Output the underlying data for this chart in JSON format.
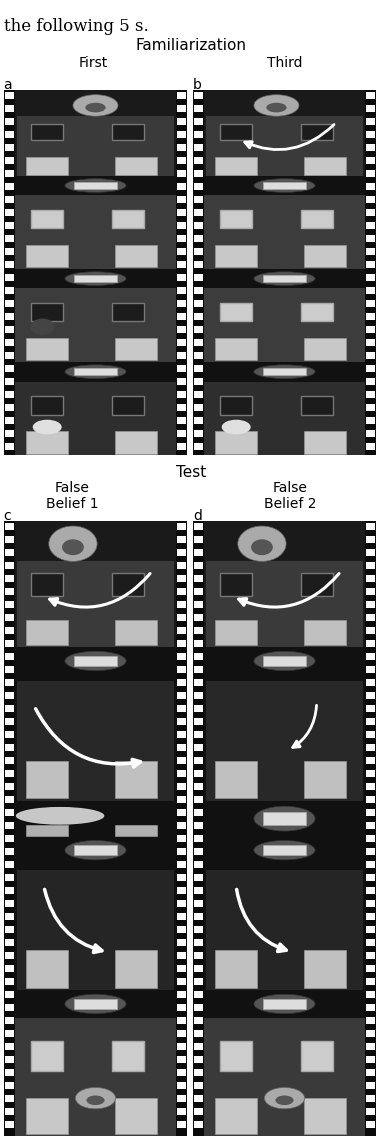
{
  "figsize": [
    3.82,
    11.38
  ],
  "dpi": 100,
  "title_text": "the following 5 s.",
  "fam_label": "Familiarization",
  "test_label": "Test",
  "col_a_label": "First",
  "col_b_label": "Third",
  "col_c_label": "False\nBelief 1",
  "col_d_label": "False\nBelief 2",
  "letter_a": "a",
  "letter_b": "b",
  "letter_c": "c",
  "letter_d": "d",
  "strip_black": "#0a0a0a",
  "sprocket_white": "#ffffff",
  "frame_dark_bg": "#1a1a1a",
  "room_bg": "#404040",
  "box_gray": "#bbbbbb",
  "wall_frame_bg": "#111111",
  "wall_frame_border": "#888888",
  "text_color": "#000000",
  "arrow_color": "#ffffff",
  "title_fontsize": 11,
  "header_fontsize": 10,
  "letter_fontsize": 10
}
